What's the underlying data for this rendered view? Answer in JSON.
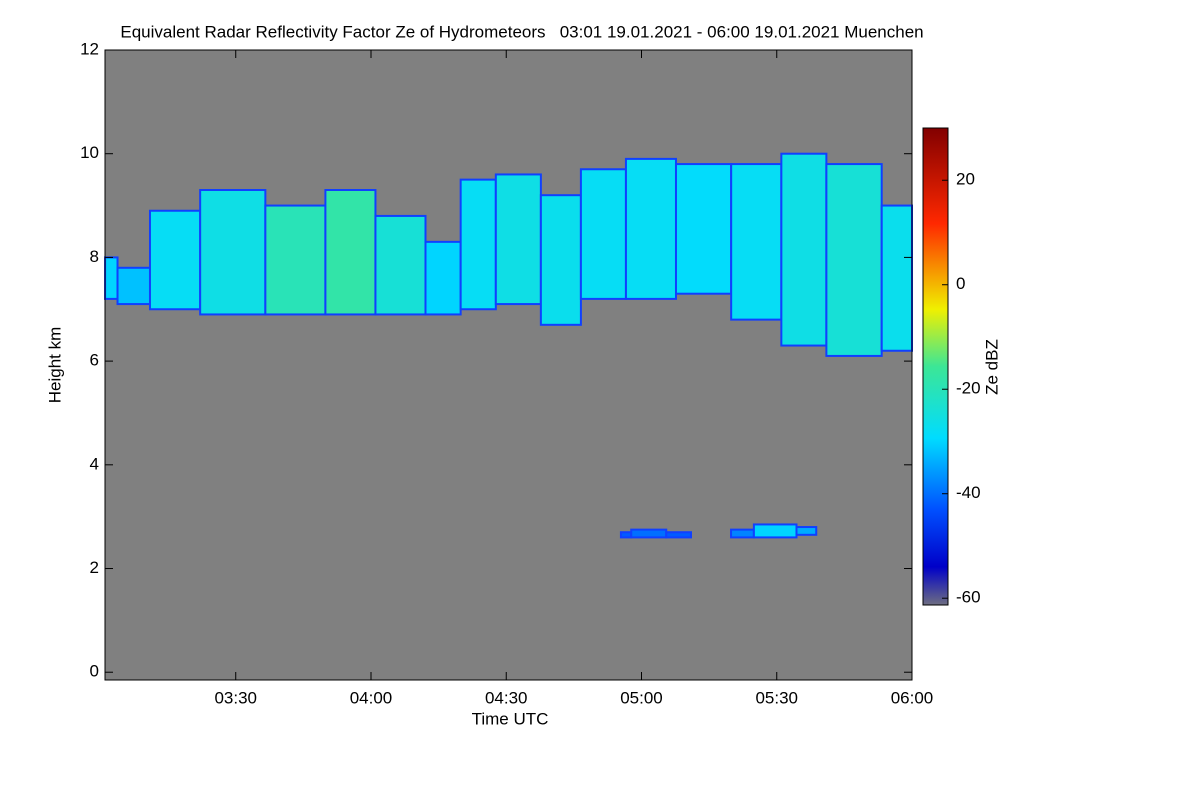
{
  "chart_data": {
    "type": "heatmap",
    "title": "Equivalent Radar Reflectivity Factor Ze of Hydrometeors   03:01 19.01.2021 - 06:00 19.01.2021 Muenchen",
    "x_label": "Time UTC",
    "y_label": "Height km",
    "colorbar_label": "Ze dBZ",
    "xlim": [
      3.0167,
      6.0
    ],
    "xticks": [
      {
        "value": 3.5,
        "label": "03:30"
      },
      {
        "value": 4.0,
        "label": "04:00"
      },
      {
        "value": 4.5,
        "label": "04:30"
      },
      {
        "value": 5.0,
        "label": "05:00"
      },
      {
        "value": 5.5,
        "label": "05:30"
      },
      {
        "value": 6.0,
        "label": "06:00"
      }
    ],
    "ylim": [
      -0.15,
      12
    ],
    "yticks": [
      0,
      2,
      4,
      6,
      8,
      10,
      12
    ],
    "zlim": [
      -61.3,
      30
    ],
    "zticks": [
      -60,
      -40,
      -20,
      0,
      20
    ],
    "background_color": "#808080",
    "layers": [
      {
        "x": [
          3.017,
          3.109,
          3.257,
          3.48,
          3.739,
          3.924,
          4.109,
          4.294,
          4.369,
          4.554,
          4.702,
          4.85,
          5.035,
          5.22,
          5.443,
          5.591,
          5.776,
          6.0
        ],
        "top": [
          8.0,
          7.8,
          8.9,
          9.3,
          9.0,
          9.3,
          8.8,
          8.3,
          9.5,
          9.6,
          9.2,
          9.7,
          9.9,
          9.8,
          9.8,
          10.0,
          9.8,
          9.0
        ],
        "base": [
          7.2,
          7.1,
          7.0,
          6.9,
          6.9,
          6.9,
          6.9,
          6.9,
          7.0,
          7.1,
          6.7,
          7.2,
          7.2,
          7.3,
          6.8,
          6.3,
          6.1,
          6.2
        ],
        "ze": [
          -30,
          -32,
          -28,
          -26,
          -20,
          -18,
          -24,
          -30,
          -28,
          -26,
          -27,
          -28,
          -28,
          -29,
          -28,
          -26,
          -24,
          -27
        ]
      },
      {
        "x": [
          4.924,
          5.0,
          5.183
        ],
        "top": [
          2.7,
          2.75,
          2.7
        ],
        "base": [
          2.6,
          2.6,
          2.6
        ],
        "ze": [
          -42,
          -40,
          -42
        ]
      },
      {
        "x": [
          5.331,
          5.5,
          5.646
        ],
        "top": [
          2.75,
          2.85,
          2.8
        ],
        "base": [
          2.6,
          2.6,
          2.65
        ],
        "ze": [
          -38,
          -30,
          -34
        ]
      }
    ]
  }
}
